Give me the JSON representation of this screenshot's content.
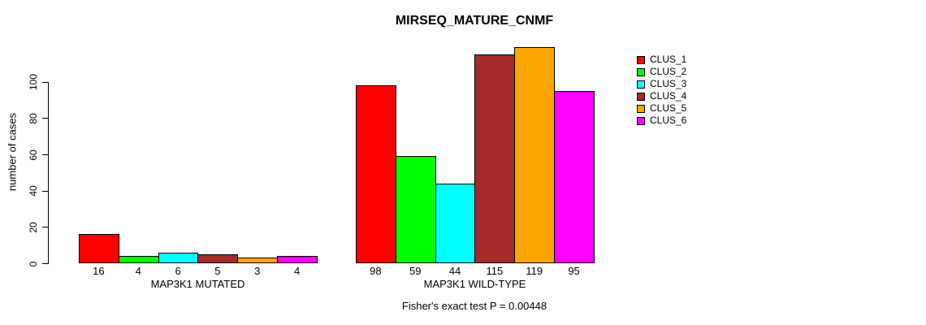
{
  "chart_data": {
    "type": "bar",
    "title": "MIRSEQ_MATURE_CNMF",
    "xlabel": "",
    "ylabel": "number of cases",
    "groups": [
      {
        "key": "map3k1-mutated",
        "label": "MAP3K1 MUTATED"
      },
      {
        "key": "map3k1-wild-type",
        "label": "MAP3K1 WILD-TYPE"
      }
    ],
    "series": [
      {
        "name": "CLUS_1",
        "color": "#FF0000",
        "values": [
          16,
          98
        ]
      },
      {
        "name": "CLUS_2",
        "color": "#00FF00",
        "values": [
          4,
          59
        ]
      },
      {
        "name": "CLUS_3",
        "color": "#00FFFF",
        "values": [
          6,
          44
        ]
      },
      {
        "name": "CLUS_4",
        "color": "#A52A2A",
        "values": [
          5,
          115
        ]
      },
      {
        "name": "CLUS_5",
        "color": "#FFA500",
        "values": [
          3,
          119
        ]
      },
      {
        "name": "CLUS_6",
        "color": "#FF00FF",
        "values": [
          4,
          95
        ]
      }
    ],
    "bar_value_labels_shown": true,
    "yticks": [
      0,
      20,
      40,
      60,
      80,
      100
    ],
    "ylim": [
      0,
      120
    ],
    "grid": false,
    "legend_position": "right",
    "bar_border_color": "#000000",
    "axis_color": "#000000",
    "annotation": "Fisher's exact test P = 0.00448"
  },
  "legend": {
    "items": [
      {
        "label": "CLUS_1",
        "color": "#FF0000"
      },
      {
        "label": "CLUS_2",
        "color": "#00FF00"
      },
      {
        "label": "CLUS_3",
        "color": "#00FFFF"
      },
      {
        "label": "CLUS_4",
        "color": "#A52A2A"
      },
      {
        "label": "CLUS_5",
        "color": "#FFA500"
      },
      {
        "label": "CLUS_6",
        "color": "#FF00FF"
      }
    ]
  }
}
